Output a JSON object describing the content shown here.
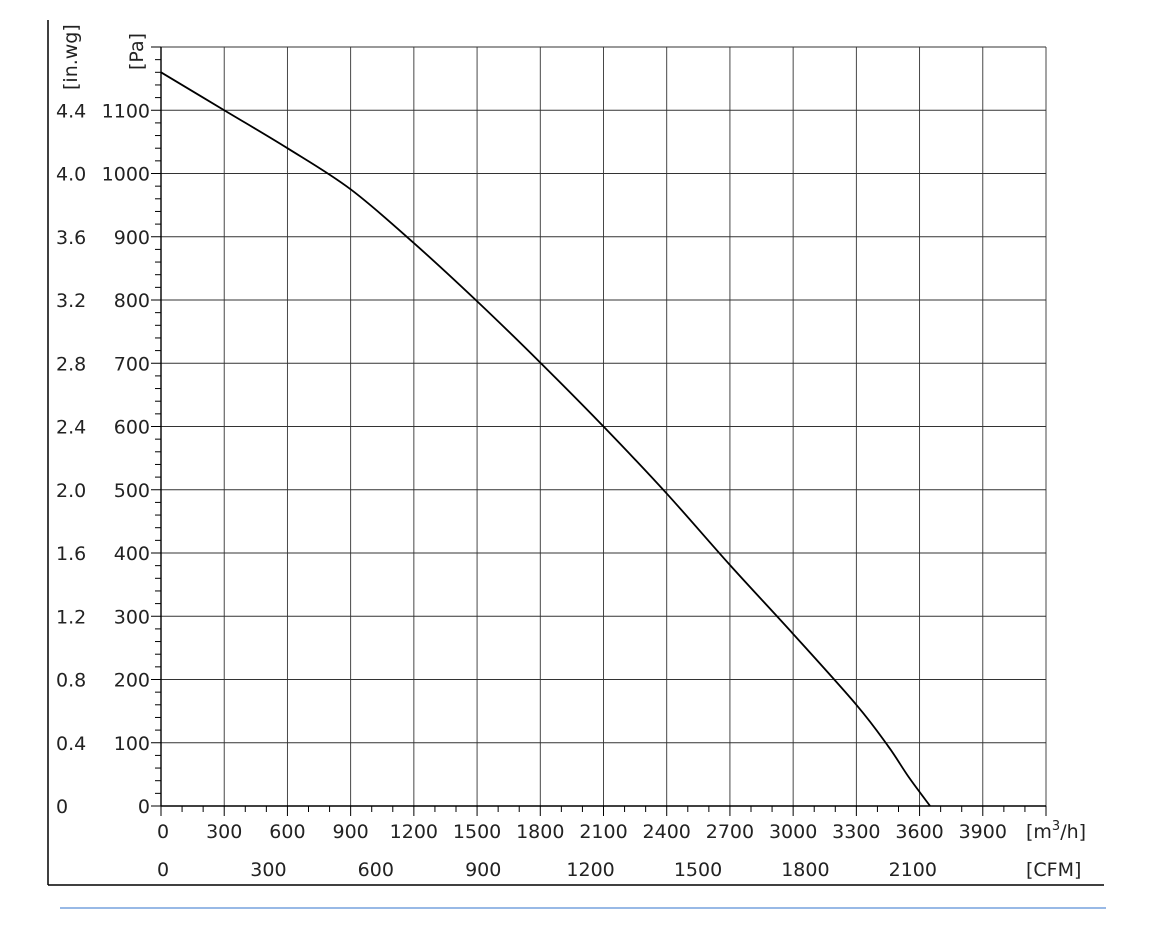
{
  "chart_data": {
    "type": "line",
    "x_unit": "[m³/h]",
    "x_unit_base": "[m",
    "x_unit_sup": "3",
    "x_unit_tail": "/h]",
    "x2_unit": "[CFM]",
    "y_unit": "[Pa]",
    "y2_unit": "[in.wg]",
    "xlim": [
      0,
      4200
    ],
    "ylim": [
      0,
      1200
    ],
    "x_ticks": [
      "0",
      "300",
      "600",
      "900",
      "1200",
      "1500",
      "1800",
      "2100",
      "2400",
      "2700",
      "3000",
      "3300",
      "3600",
      "3900"
    ],
    "x2_ticks": [
      "0",
      "300",
      "600",
      "900",
      "1200",
      "1500",
      "1800",
      "2100"
    ],
    "y_ticks": [
      "0",
      "100",
      "200",
      "300",
      "400",
      "500",
      "600",
      "700",
      "800",
      "900",
      "1000",
      "1100"
    ],
    "y2_ticks": [
      "0",
      "0.4",
      "0.8",
      "1.2",
      "1.6",
      "2.0",
      "2.4",
      "2.8",
      "3.2",
      "3.6",
      "4.0",
      "4.4"
    ],
    "grid": true,
    "series": [
      {
        "x": [
          0,
          300,
          600,
          900,
          1200,
          1500,
          1800,
          2100,
          2400,
          2700,
          3000,
          3300,
          3450,
          3550,
          3650
        ],
        "y": [
          1160,
          1100,
          1040,
          975,
          890,
          798,
          701,
          600,
          494,
          381,
          272,
          160,
          95,
          45,
          0
        ]
      }
    ],
    "colors": {
      "curve": "#000000",
      "grid": "#333333",
      "footer_line": "#5a8fd6"
    }
  }
}
